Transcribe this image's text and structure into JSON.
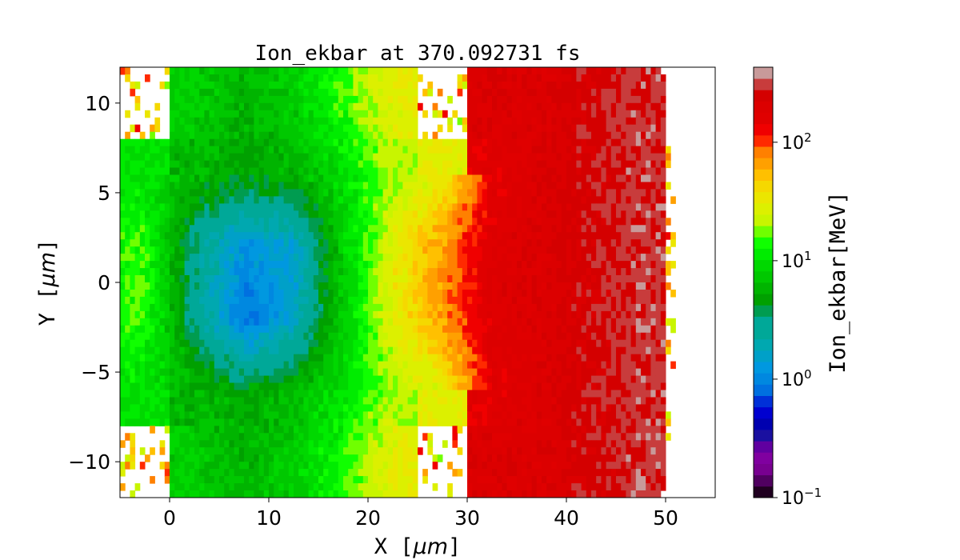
{
  "chart_data": {
    "type": "heatmap",
    "title": "Ion_ekbar at 370.092731 fs",
    "xlabel_text": "X",
    "xlabel_unit": "μm",
    "ylabel_text": "Y",
    "ylabel_unit": "μm",
    "xlim": [
      -5,
      55
    ],
    "ylim": [
      -12,
      12
    ],
    "xticks": [
      0,
      10,
      20,
      30,
      40,
      50
    ],
    "xtick_labels": [
      "0",
      "10",
      "20",
      "30",
      "40",
      "50"
    ],
    "yticks": [
      10,
      5,
      0,
      -5,
      -10
    ],
    "ytick_labels": [
      "10",
      "5",
      "0",
      "−5",
      "−10"
    ],
    "colorbar": {
      "label": "Ion_ekbar[MeV]",
      "scale": "log",
      "range": [
        0.1,
        430
      ],
      "ticks": [
        100,
        10,
        1,
        0.1
      ],
      "tick_bases": [
        "10",
        "10",
        "10",
        "10"
      ],
      "tick_exponents": [
        "2",
        "1",
        "0",
        "−1"
      ],
      "colors": [
        "#200020",
        "#500060",
        "#780090",
        "#8000a0",
        "#6000a0",
        "#1a10a0",
        "#0000b0",
        "#0000d0",
        "#0030d8",
        "#0070e0",
        "#0088e0",
        "#0098e0",
        "#00a0c8",
        "#00a8b0",
        "#00a898",
        "#00a898",
        "#009c50",
        "#00a000",
        "#00b400",
        "#00c800",
        "#00d800",
        "#00ec00",
        "#10ff00",
        "#70ff00",
        "#c8f500",
        "#dcf000",
        "#ebe600",
        "#f5d800",
        "#ffc000",
        "#ffa000",
        "#ff8000",
        "#ff2a00",
        "#f00000",
        "#e00000",
        "#dc0000",
        "#d40000",
        "#c83c3c",
        "#c89a9a"
      ]
    },
    "grid_x_centers": [
      -2.5,
      2.5,
      7.5,
      12.5,
      17.5,
      22.5,
      27.5,
      32.5,
      37.5,
      42.5,
      47.5,
      52.5
    ],
    "grid_y_centers": [
      10,
      6,
      2,
      -2,
      -6,
      -10
    ],
    "values_approx": [
      [
        null,
        8,
        6,
        8,
        15,
        30,
        null,
        200,
        200,
        250,
        300,
        null
      ],
      [
        10,
        6,
        5,
        6,
        10,
        20,
        30,
        150,
        200,
        250,
        300,
        null
      ],
      [
        15,
        3,
        1.2,
        1.5,
        8,
        30,
        70,
        180,
        200,
        250,
        300,
        null
      ],
      [
        15,
        3,
        0.8,
        1.5,
        8,
        30,
        70,
        180,
        200,
        250,
        300,
        null
      ],
      [
        10,
        6,
        5,
        6,
        10,
        20,
        30,
        150,
        200,
        250,
        300,
        null
      ],
      [
        null,
        8,
        6,
        8,
        15,
        30,
        null,
        200,
        200,
        250,
        300,
        null
      ]
    ]
  }
}
